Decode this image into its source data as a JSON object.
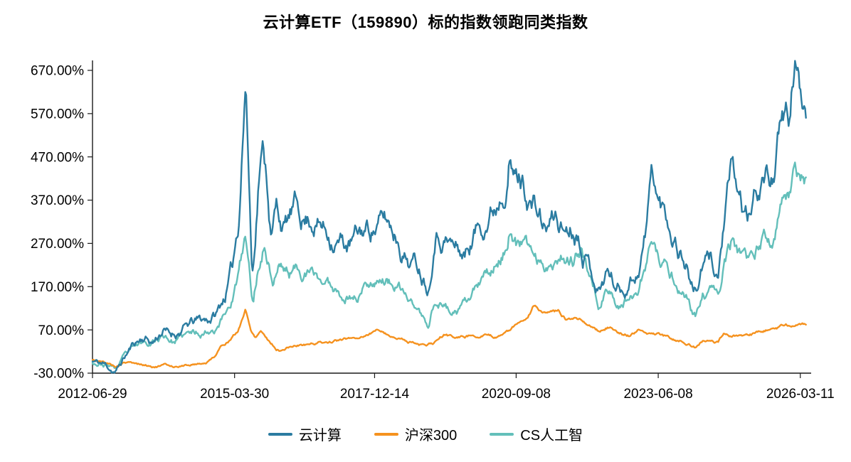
{
  "page": {
    "background": "#ffffff"
  },
  "chart_data": {
    "type": "line",
    "title": "云计算ETF（159890）标的指数领跑同类指数",
    "legend_position": "bottom",
    "grid": false,
    "value_format": "percent",
    "y_axis": {
      "min": -30,
      "max": 670,
      "overshoot_max": 692,
      "ticks": [
        {
          "value": -30,
          "label": "-30.00%"
        },
        {
          "value": 70,
          "label": "70.00%"
        },
        {
          "value": 170,
          "label": "170.00%"
        },
        {
          "value": 270,
          "label": "270.00%"
        },
        {
          "value": 370,
          "label": "370.00%"
        },
        {
          "value": 470,
          "label": "470.00%"
        },
        {
          "value": 570,
          "label": "570.00%"
        },
        {
          "value": 670,
          "label": "670.00%"
        }
      ]
    },
    "x_axis": {
      "min": 2012.49,
      "max": 2026.4,
      "ticks": [
        {
          "t": 2012.49,
          "label": "2012-06-29"
        },
        {
          "t": 2015.24,
          "label": "2015-03-30"
        },
        {
          "t": 2017.95,
          "label": "2017-12-14"
        },
        {
          "t": 2020.69,
          "label": "2020-09-08"
        },
        {
          "t": 2023.44,
          "label": "2023-06-08"
        },
        {
          "t": 2026.19,
          "label": "2026-03-11"
        }
      ]
    },
    "series": [
      {
        "id": "yunjisuan",
        "name": "云计算",
        "color": "#2B7CA1",
        "noise": 26,
        "seed": 11,
        "keypoints": [
          [
            2012.49,
            -3
          ],
          [
            2012.7,
            -10
          ],
          [
            2012.95,
            -26
          ],
          [
            2013.1,
            5
          ],
          [
            2013.3,
            40
          ],
          [
            2013.5,
            55
          ],
          [
            2013.65,
            42
          ],
          [
            2013.85,
            72
          ],
          [
            2014.0,
            58
          ],
          [
            2014.2,
            70
          ],
          [
            2014.45,
            85
          ],
          [
            2014.7,
            92
          ],
          [
            2014.9,
            108
          ],
          [
            2015.05,
            150
          ],
          [
            2015.2,
            210
          ],
          [
            2015.32,
            330
          ],
          [
            2015.45,
            655
          ],
          [
            2015.52,
            430
          ],
          [
            2015.58,
            200
          ],
          [
            2015.65,
            320
          ],
          [
            2015.72,
            460
          ],
          [
            2015.8,
            490
          ],
          [
            2015.88,
            420
          ],
          [
            2015.95,
            300
          ],
          [
            2016.05,
            360
          ],
          [
            2016.2,
            310
          ],
          [
            2016.4,
            345
          ],
          [
            2016.6,
            330
          ],
          [
            2016.8,
            335
          ],
          [
            2017.0,
            305
          ],
          [
            2017.2,
            290
          ],
          [
            2017.45,
            265
          ],
          [
            2017.7,
            290
          ],
          [
            2017.95,
            315
          ],
          [
            2018.15,
            320
          ],
          [
            2018.4,
            290
          ],
          [
            2018.6,
            245
          ],
          [
            2018.8,
            225
          ],
          [
            2019.0,
            185
          ],
          [
            2019.12,
            320
          ],
          [
            2019.3,
            305
          ],
          [
            2019.5,
            265
          ],
          [
            2019.7,
            245
          ],
          [
            2019.9,
            300
          ],
          [
            2020.1,
            340
          ],
          [
            2020.3,
            370
          ],
          [
            2020.45,
            430
          ],
          [
            2020.55,
            505
          ],
          [
            2020.65,
            440
          ],
          [
            2020.8,
            420
          ],
          [
            2020.95,
            385
          ],
          [
            2021.1,
            345
          ],
          [
            2021.25,
            300
          ],
          [
            2021.45,
            330
          ],
          [
            2021.6,
            305
          ],
          [
            2021.8,
            320
          ],
          [
            2021.95,
            300
          ],
          [
            2022.1,
            240
          ],
          [
            2022.3,
            175
          ],
          [
            2022.45,
            215
          ],
          [
            2022.6,
            180
          ],
          [
            2022.75,
            165
          ],
          [
            2022.9,
            195
          ],
          [
            2023.05,
            215
          ],
          [
            2023.2,
            300
          ],
          [
            2023.32,
            440
          ],
          [
            2023.45,
            360
          ],
          [
            2023.6,
            330
          ],
          [
            2023.75,
            295
          ],
          [
            2023.9,
            255
          ],
          [
            2024.0,
            230
          ],
          [
            2024.1,
            175
          ],
          [
            2024.17,
            165
          ],
          [
            2024.3,
            215
          ],
          [
            2024.45,
            230
          ],
          [
            2024.6,
            195
          ],
          [
            2024.72,
            330
          ],
          [
            2024.85,
            420
          ],
          [
            2024.95,
            380
          ],
          [
            2025.1,
            330
          ],
          [
            2025.2,
            315
          ],
          [
            2025.35,
            390
          ],
          [
            2025.5,
            430
          ],
          [
            2025.6,
            415
          ],
          [
            2025.7,
            460
          ],
          [
            2025.8,
            520
          ],
          [
            2025.9,
            545
          ],
          [
            2026.0,
            560
          ],
          [
            2026.08,
            680
          ],
          [
            2026.15,
            620
          ],
          [
            2026.25,
            600
          ],
          [
            2026.3,
            590
          ]
        ]
      },
      {
        "id": "hs300",
        "name": "沪深300",
        "color": "#F5921F",
        "noise": 8,
        "seed": 5,
        "keypoints": [
          [
            2012.49,
            0
          ],
          [
            2012.7,
            -5
          ],
          [
            2012.95,
            -14
          ],
          [
            2013.1,
            -4
          ],
          [
            2013.3,
            -8
          ],
          [
            2013.5,
            -12
          ],
          [
            2013.7,
            -15
          ],
          [
            2013.9,
            -12
          ],
          [
            2014.1,
            -14
          ],
          [
            2014.3,
            -12
          ],
          [
            2014.5,
            -8
          ],
          [
            2014.7,
            -5
          ],
          [
            2014.85,
            10
          ],
          [
            2015.0,
            35
          ],
          [
            2015.15,
            48
          ],
          [
            2015.3,
            65
          ],
          [
            2015.45,
            118
          ],
          [
            2015.55,
            70
          ],
          [
            2015.65,
            55
          ],
          [
            2015.75,
            72
          ],
          [
            2015.85,
            55
          ],
          [
            2015.95,
            42
          ],
          [
            2016.05,
            28
          ],
          [
            2016.15,
            24
          ],
          [
            2016.35,
            33
          ],
          [
            2016.6,
            36
          ],
          [
            2016.85,
            40
          ],
          [
            2017.1,
            43
          ],
          [
            2017.35,
            47
          ],
          [
            2017.6,
            52
          ],
          [
            2017.85,
            62
          ],
          [
            2018.05,
            72
          ],
          [
            2018.25,
            58
          ],
          [
            2018.5,
            48
          ],
          [
            2018.75,
            40
          ],
          [
            2018.95,
            33
          ],
          [
            2019.1,
            38
          ],
          [
            2019.3,
            58
          ],
          [
            2019.5,
            52
          ],
          [
            2019.7,
            55
          ],
          [
            2019.9,
            60
          ],
          [
            2020.1,
            58
          ],
          [
            2020.25,
            52
          ],
          [
            2020.45,
            62
          ],
          [
            2020.6,
            72
          ],
          [
            2020.75,
            85
          ],
          [
            2020.9,
            95
          ],
          [
            2021.05,
            128
          ],
          [
            2021.2,
            108
          ],
          [
            2021.35,
            102
          ],
          [
            2021.5,
            108
          ],
          [
            2021.65,
            95
          ],
          [
            2021.8,
            100
          ],
          [
            2021.95,
            98
          ],
          [
            2022.1,
            85
          ],
          [
            2022.3,
            68
          ],
          [
            2022.45,
            78
          ],
          [
            2022.6,
            70
          ],
          [
            2022.75,
            62
          ],
          [
            2022.9,
            58
          ],
          [
            2023.05,
            68
          ],
          [
            2023.2,
            66
          ],
          [
            2023.35,
            62
          ],
          [
            2023.5,
            58
          ],
          [
            2023.7,
            52
          ],
          [
            2023.9,
            46
          ],
          [
            2024.0,
            42
          ],
          [
            2024.1,
            34
          ],
          [
            2024.17,
            30
          ],
          [
            2024.3,
            45
          ],
          [
            2024.45,
            48
          ],
          [
            2024.6,
            42
          ],
          [
            2024.72,
            62
          ],
          [
            2024.85,
            58
          ],
          [
            2024.95,
            56
          ],
          [
            2025.1,
            55
          ],
          [
            2025.25,
            58
          ],
          [
            2025.4,
            62
          ],
          [
            2025.55,
            68
          ],
          [
            2025.7,
            72
          ],
          [
            2025.85,
            78
          ],
          [
            2026.0,
            82
          ],
          [
            2026.1,
            88
          ],
          [
            2026.2,
            90
          ],
          [
            2026.3,
            88
          ]
        ]
      },
      {
        "id": "cs-ai",
        "name": "CS人工智",
        "color": "#63BFBA",
        "noise": 20,
        "seed": 23,
        "keypoints": [
          [
            2012.49,
            -3
          ],
          [
            2012.7,
            -8
          ],
          [
            2012.95,
            -18
          ],
          [
            2013.1,
            5
          ],
          [
            2013.3,
            25
          ],
          [
            2013.5,
            38
          ],
          [
            2013.7,
            50
          ],
          [
            2013.9,
            58
          ],
          [
            2014.05,
            45
          ],
          [
            2014.3,
            55
          ],
          [
            2014.6,
            65
          ],
          [
            2014.85,
            78
          ],
          [
            2015.05,
            110
          ],
          [
            2015.2,
            150
          ],
          [
            2015.32,
            200
          ],
          [
            2015.45,
            278
          ],
          [
            2015.55,
            170
          ],
          [
            2015.6,
            125
          ],
          [
            2015.7,
            210
          ],
          [
            2015.8,
            268
          ],
          [
            2015.9,
            230
          ],
          [
            2015.98,
            185
          ],
          [
            2016.1,
            225
          ],
          [
            2016.3,
            205
          ],
          [
            2016.5,
            215
          ],
          [
            2016.7,
            200
          ],
          [
            2016.9,
            185
          ],
          [
            2017.1,
            170
          ],
          [
            2017.35,
            158
          ],
          [
            2017.6,
            150
          ],
          [
            2017.85,
            185
          ],
          [
            2018.05,
            200
          ],
          [
            2018.3,
            180
          ],
          [
            2018.55,
            145
          ],
          [
            2018.8,
            115
          ],
          [
            2019.0,
            68
          ],
          [
            2019.12,
            140
          ],
          [
            2019.3,
            128
          ],
          [
            2019.5,
            108
          ],
          [
            2019.7,
            118
          ],
          [
            2019.9,
            155
          ],
          [
            2020.1,
            185
          ],
          [
            2020.3,
            220
          ],
          [
            2020.5,
            260
          ],
          [
            2020.6,
            325
          ],
          [
            2020.7,
            280
          ],
          [
            2020.85,
            260
          ],
          [
            2021.0,
            245
          ],
          [
            2021.2,
            215
          ],
          [
            2021.4,
            235
          ],
          [
            2021.6,
            255
          ],
          [
            2021.8,
            240
          ],
          [
            2021.95,
            245
          ],
          [
            2022.1,
            195
          ],
          [
            2022.3,
            135
          ],
          [
            2022.45,
            165
          ],
          [
            2022.6,
            140
          ],
          [
            2022.75,
            125
          ],
          [
            2022.9,
            155
          ],
          [
            2023.05,
            170
          ],
          [
            2023.2,
            225
          ],
          [
            2023.32,
            270
          ],
          [
            2023.45,
            225
          ],
          [
            2023.6,
            205
          ],
          [
            2023.75,
            185
          ],
          [
            2023.9,
            165
          ],
          [
            2024.0,
            150
          ],
          [
            2024.1,
            115
          ],
          [
            2024.17,
            100
          ],
          [
            2024.3,
            145
          ],
          [
            2024.45,
            155
          ],
          [
            2024.6,
            135
          ],
          [
            2024.72,
            225
          ],
          [
            2024.85,
            270
          ],
          [
            2024.95,
            245
          ],
          [
            2025.1,
            215
          ],
          [
            2025.2,
            205
          ],
          [
            2025.35,
            250
          ],
          [
            2025.5,
            280
          ],
          [
            2025.6,
            270
          ],
          [
            2025.7,
            300
          ],
          [
            2025.8,
            345
          ],
          [
            2025.9,
            380
          ],
          [
            2026.0,
            400
          ],
          [
            2026.08,
            475
          ],
          [
            2026.15,
            450
          ],
          [
            2026.25,
            435
          ],
          [
            2026.3,
            430
          ]
        ]
      }
    ]
  }
}
